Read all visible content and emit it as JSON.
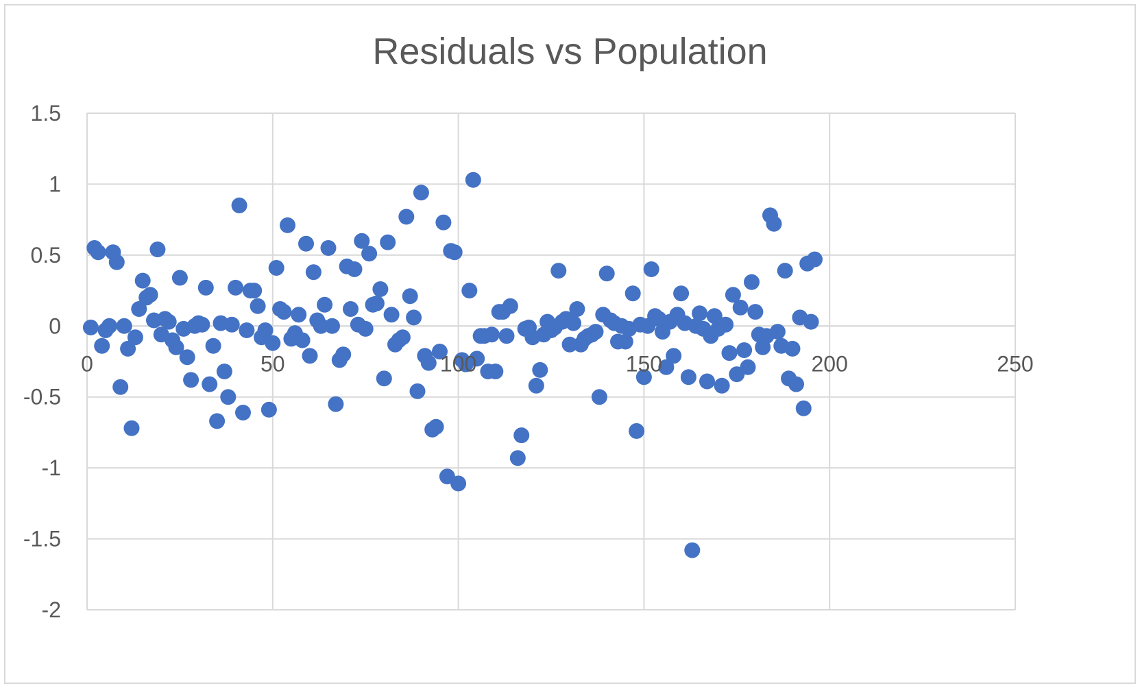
{
  "chart_data": {
    "type": "scatter",
    "title": "Residuals vs Population",
    "xlabel": "",
    "ylabel": "",
    "xlim": [
      0,
      250
    ],
    "ylim": [
      -2,
      1.5
    ],
    "xticks": [
      0,
      50,
      100,
      150,
      200,
      250
    ],
    "yticks": [
      1.5,
      1,
      0.5,
      0,
      -0.5,
      -1,
      -1.5,
      -2
    ],
    "grid": true,
    "legend": "none",
    "colors": {
      "marker": "#4472c4",
      "grid": "#d9d9d9",
      "text": "#595959"
    },
    "series": [
      {
        "points": [
          [
            1,
            -0.01
          ],
          [
            2,
            0.55
          ],
          [
            3,
            0.52
          ],
          [
            4,
            -0.14
          ],
          [
            5,
            -0.03
          ],
          [
            6,
            0.0
          ],
          [
            7,
            0.52
          ],
          [
            8,
            0.45
          ],
          [
            9,
            -0.43
          ],
          [
            10,
            0.0
          ],
          [
            11,
            -0.16
          ],
          [
            12,
            -0.72
          ],
          [
            13,
            -0.08
          ],
          [
            14,
            0.12
          ],
          [
            15,
            0.32
          ],
          [
            16,
            0.2
          ],
          [
            17,
            0.22
          ],
          [
            18,
            0.04
          ],
          [
            19,
            0.54
          ],
          [
            20,
            -0.06
          ],
          [
            21,
            0.05
          ],
          [
            22,
            0.03
          ],
          [
            23,
            -0.1
          ],
          [
            24,
            -0.15
          ],
          [
            25,
            0.34
          ],
          [
            26,
            -0.02
          ],
          [
            27,
            -0.22
          ],
          [
            28,
            -0.38
          ],
          [
            29,
            0.0
          ],
          [
            30,
            0.02
          ],
          [
            31,
            0.01
          ],
          [
            32,
            0.27
          ],
          [
            33,
            -0.41
          ],
          [
            34,
            -0.14
          ],
          [
            35,
            -0.67
          ],
          [
            36,
            0.02
          ],
          [
            37,
            -0.32
          ],
          [
            38,
            -0.5
          ],
          [
            39,
            0.01
          ],
          [
            40,
            0.27
          ],
          [
            41,
            0.85
          ],
          [
            42,
            -0.61
          ],
          [
            43,
            -0.03
          ],
          [
            44,
            0.25
          ],
          [
            45,
            0.25
          ],
          [
            46,
            0.14
          ],
          [
            47,
            -0.08
          ],
          [
            48,
            -0.03
          ],
          [
            49,
            -0.59
          ],
          [
            50,
            -0.12
          ],
          [
            51,
            0.41
          ],
          [
            52,
            0.12
          ],
          [
            53,
            0.1
          ],
          [
            54,
            0.71
          ],
          [
            55,
            -0.09
          ],
          [
            56,
            -0.05
          ],
          [
            57,
            0.08
          ],
          [
            58,
            -0.1
          ],
          [
            59,
            0.58
          ],
          [
            60,
            -0.21
          ],
          [
            61,
            0.38
          ],
          [
            62,
            0.04
          ],
          [
            63,
            0.0
          ],
          [
            64,
            0.15
          ],
          [
            65,
            0.55
          ],
          [
            66,
            0.0
          ],
          [
            67,
            -0.55
          ],
          [
            68,
            -0.24
          ],
          [
            69,
            -0.2
          ],
          [
            70,
            0.42
          ],
          [
            71,
            0.12
          ],
          [
            72,
            0.4
          ],
          [
            73,
            0.01
          ],
          [
            74,
            0.6
          ],
          [
            75,
            -0.02
          ],
          [
            76,
            0.51
          ],
          [
            77,
            0.15
          ],
          [
            78,
            0.16
          ],
          [
            79,
            0.26
          ],
          [
            80,
            -0.37
          ],
          [
            81,
            0.59
          ],
          [
            82,
            0.08
          ],
          [
            83,
            -0.13
          ],
          [
            84,
            -0.1
          ],
          [
            85,
            -0.08
          ],
          [
            86,
            0.77
          ],
          [
            87,
            0.21
          ],
          [
            88,
            0.06
          ],
          [
            89,
            -0.46
          ],
          [
            90,
            0.94
          ],
          [
            91,
            -0.21
          ],
          [
            92,
            -0.26
          ],
          [
            93,
            -0.73
          ],
          [
            94,
            -0.71
          ],
          [
            95,
            -0.18
          ],
          [
            96,
            0.73
          ],
          [
            97,
            -1.06
          ],
          [
            98,
            0.53
          ],
          [
            99,
            0.52
          ],
          [
            100,
            -1.11
          ],
          [
            101,
            -0.24
          ],
          [
            102,
            -0.27
          ],
          [
            103,
            0.25
          ],
          [
            104,
            1.03
          ],
          [
            105,
            -0.23
          ],
          [
            106,
            -0.07
          ],
          [
            107,
            -0.07
          ],
          [
            108,
            -0.32
          ],
          [
            109,
            -0.06
          ],
          [
            110,
            -0.32
          ],
          [
            111,
            0.1
          ],
          [
            112,
            0.1
          ],
          [
            113,
            -0.07
          ],
          [
            114,
            0.14
          ],
          [
            116,
            -0.93
          ],
          [
            117,
            -0.77
          ],
          [
            118,
            -0.02
          ],
          [
            119,
            -0.01
          ],
          [
            120,
            -0.08
          ],
          [
            121,
            -0.42
          ],
          [
            122,
            -0.31
          ],
          [
            123,
            -0.06
          ],
          [
            124,
            0.03
          ],
          [
            125,
            -0.03
          ],
          [
            126,
            -0.01
          ],
          [
            127,
            0.39
          ],
          [
            128,
            0.03
          ],
          [
            129,
            0.05
          ],
          [
            130,
            -0.13
          ],
          [
            131,
            0.02
          ],
          [
            132,
            0.12
          ],
          [
            133,
            -0.13
          ],
          [
            134,
            -0.09
          ],
          [
            135,
            -0.07
          ],
          [
            136,
            -0.06
          ],
          [
            137,
            -0.04
          ],
          [
            138,
            -0.5
          ],
          [
            139,
            0.08
          ],
          [
            140,
            0.37
          ],
          [
            141,
            0.04
          ],
          [
            142,
            0.02
          ],
          [
            143,
            -0.11
          ],
          [
            144,
            0.0
          ],
          [
            145,
            -0.11
          ],
          [
            146,
            -0.02
          ],
          [
            147,
            0.23
          ],
          [
            148,
            -0.74
          ],
          [
            149,
            0.01
          ],
          [
            150,
            -0.36
          ],
          [
            151,
            0.0
          ],
          [
            152,
            0.4
          ],
          [
            153,
            0.07
          ],
          [
            154,
            0.05
          ],
          [
            155,
            -0.04
          ],
          [
            156,
            -0.29
          ],
          [
            157,
            0.03
          ],
          [
            158,
            -0.21
          ],
          [
            159,
            0.08
          ],
          [
            160,
            0.23
          ],
          [
            161,
            0.02
          ],
          [
            162,
            -0.36
          ],
          [
            163,
            -1.58
          ],
          [
            164,
            0.0
          ],
          [
            165,
            0.09
          ],
          [
            166,
            -0.02
          ],
          [
            167,
            -0.39
          ],
          [
            168,
            -0.07
          ],
          [
            169,
            0.07
          ],
          [
            170,
            -0.02
          ],
          [
            171,
            -0.42
          ],
          [
            172,
            0.01
          ],
          [
            173,
            -0.19
          ],
          [
            174,
            0.22
          ],
          [
            175,
            -0.34
          ],
          [
            176,
            0.13
          ],
          [
            177,
            -0.17
          ],
          [
            178,
            -0.29
          ],
          [
            179,
            0.31
          ],
          [
            180,
            0.1
          ],
          [
            181,
            -0.06
          ],
          [
            182,
            -0.15
          ],
          [
            183,
            -0.07
          ],
          [
            184,
            0.78
          ],
          [
            185,
            0.72
          ],
          [
            186,
            -0.04
          ],
          [
            187,
            -0.14
          ],
          [
            188,
            0.39
          ],
          [
            189,
            -0.37
          ],
          [
            190,
            -0.16
          ],
          [
            191,
            -0.41
          ],
          [
            192,
            0.06
          ],
          [
            193,
            -0.58
          ],
          [
            194,
            0.44
          ],
          [
            195,
            0.03
          ],
          [
            196,
            0.47
          ]
        ]
      }
    ]
  }
}
